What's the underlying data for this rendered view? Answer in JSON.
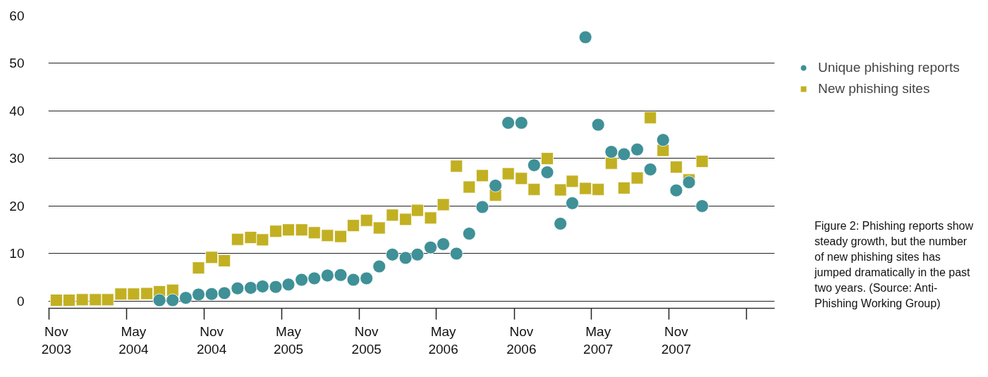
{
  "chart_data": {
    "type": "scatter",
    "x": [
      "2003-11",
      "2003-12",
      "2004-01",
      "2004-02",
      "2004-03",
      "2004-04",
      "2004-05",
      "2004-06",
      "2004-07",
      "2004-08",
      "2004-09",
      "2004-10",
      "2004-11",
      "2004-12",
      "2005-01",
      "2005-02",
      "2005-03",
      "2005-04",
      "2005-05",
      "2005-06",
      "2005-07",
      "2005-08",
      "2005-09",
      "2005-10",
      "2005-11",
      "2005-12",
      "2006-01",
      "2006-02",
      "2006-03",
      "2006-04",
      "2006-05",
      "2006-06",
      "2006-07",
      "2006-08",
      "2006-09",
      "2006-10",
      "2006-11",
      "2006-12",
      "2007-01",
      "2007-02",
      "2007-03",
      "2007-04",
      "2007-05",
      "2007-06",
      "2007-07",
      "2007-08",
      "2007-09",
      "2007-10",
      "2007-11",
      "2007-12",
      "2008-01"
    ],
    "series": [
      {
        "name": "Unique phishing reports",
        "color": "#3f9097",
        "marker": "circle",
        "values": [
          null,
          null,
          null,
          null,
          null,
          null,
          null,
          null,
          0.2,
          0.2,
          0.7,
          1.4,
          1.5,
          1.7,
          2.7,
          2.8,
          3.1,
          3.0,
          3.5,
          4.5,
          4.8,
          5.4,
          5.5,
          4.5,
          4.8,
          7.3,
          9.8,
          9.1,
          9.8,
          11.3,
          12.0,
          10.0,
          14.2,
          19.8,
          24.3,
          37.5,
          37.5,
          28.6,
          27.1,
          16.3,
          20.6,
          55.5,
          37.1,
          31.4,
          30.9,
          31.9,
          27.7,
          33.9,
          23.3,
          25.0,
          20.0
        ]
      },
      {
        "name": "New phishing sites",
        "color": "#c2b022",
        "marker": "square",
        "values": [
          0.2,
          0.2,
          0.3,
          0.3,
          0.3,
          1.5,
          1.5,
          1.6,
          2.0,
          2.3,
          null,
          7.0,
          9.2,
          8.5,
          13.0,
          13.4,
          12.9,
          14.7,
          15.0,
          15.0,
          14.4,
          13.8,
          13.6,
          15.9,
          17.0,
          15.4,
          18.1,
          17.2,
          19.1,
          17.5,
          20.3,
          28.4,
          24.0,
          26.4,
          22.3,
          26.8,
          25.8,
          23.5,
          30.0,
          23.4,
          25.2,
          23.7,
          23.5,
          29.0,
          23.8,
          25.9,
          38.6,
          31.7,
          28.2,
          25.5,
          29.4
        ]
      }
    ],
    "ylim": [
      -1.5,
      60
    ],
    "yticks": [
      0,
      10,
      20,
      30,
      40,
      50,
      60
    ],
    "xlim": [
      "2003-10-13",
      "2008-06-20"
    ],
    "xticks": [
      {
        "value": "2003-10-15",
        "label": null
      },
      {
        "value": "2003-11",
        "label": "Nov\n2003"
      },
      {
        "value": "2004-04-15",
        "label": null
      },
      {
        "value": "2004-05",
        "label": "May\n2004"
      },
      {
        "value": "2004-10-15",
        "label": null
      },
      {
        "value": "2004-11",
        "label": "Nov\n2004"
      },
      {
        "value": "2005-04-15",
        "label": null
      },
      {
        "value": "2005-05",
        "label": "May\n2005"
      },
      {
        "value": "2005-10-15",
        "label": null
      },
      {
        "value": "2005-11",
        "label": "Nov\n2005"
      },
      {
        "value": "2006-04-15",
        "label": null
      },
      {
        "value": "2006-05",
        "label": "May\n2006"
      },
      {
        "value": "2006-10-15",
        "label": null
      },
      {
        "value": "2006-11",
        "label": "Nov\n2006"
      },
      {
        "value": "2007-04-15",
        "label": null
      },
      {
        "value": "2007-05",
        "label": "May\n2007"
      },
      {
        "value": "2007-10-15",
        "label": null
      },
      {
        "value": "2007-11",
        "label": "Nov\n2007"
      },
      {
        "value": "2008-04-15",
        "label": null
      }
    ],
    "grid": "y",
    "legend": "right",
    "annotations": [
      "Figure 2: Phishing reports show steady growth, but the number of new phishing sites has jumped dramatically in the past two years. (Source: Anti-Phishing Working Group)"
    ]
  }
}
